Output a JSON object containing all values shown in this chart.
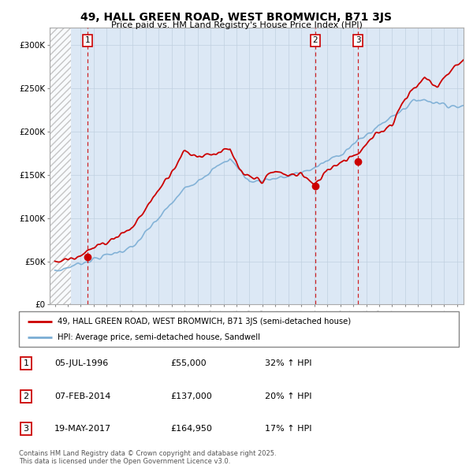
{
  "title": "49, HALL GREEN ROAD, WEST BROMWICH, B71 3JS",
  "subtitle": "Price paid vs. HM Land Registry's House Price Index (HPI)",
  "background_color": "#ffffff",
  "plot_bg_color": "#dce8f5",
  "hatch_region_end": 1995.25,
  "ylim": [
    0,
    320000
  ],
  "yticks": [
    0,
    50000,
    100000,
    150000,
    200000,
    250000,
    300000
  ],
  "ytick_labels": [
    "£0",
    "£50K",
    "£100K",
    "£150K",
    "£200K",
    "£250K",
    "£300K"
  ],
  "xmin": 1993.6,
  "xmax": 2025.5,
  "transactions": [
    {
      "num": 1,
      "year": 1996.5,
      "price": 55000
    },
    {
      "num": 2,
      "year": 2014.08,
      "price": 137000
    },
    {
      "num": 3,
      "year": 2017.37,
      "price": 164950
    }
  ],
  "legend_line1": "49, HALL GREEN ROAD, WEST BROMWICH, B71 3JS (semi-detached house)",
  "legend_line2": "HPI: Average price, semi-detached house, Sandwell",
  "footer1": "Contains HM Land Registry data © Crown copyright and database right 2025.",
  "footer2": "This data is licensed under the Open Government Licence v3.0.",
  "table": [
    {
      "num": "1",
      "date": "05-JUL-1996",
      "price": "£55,000",
      "info": "32% ↑ HPI"
    },
    {
      "num": "2",
      "date": "07-FEB-2014",
      "price": "£137,000",
      "info": "20% ↑ HPI"
    },
    {
      "num": "3",
      "date": "19-MAY-2017",
      "price": "£164,950",
      "info": "17% ↑ HPI"
    }
  ],
  "red_line_color": "#cc0000",
  "blue_line_color": "#7aadd4",
  "dashed_line_color": "#cc0000",
  "grid_color": "#c0d0e0"
}
